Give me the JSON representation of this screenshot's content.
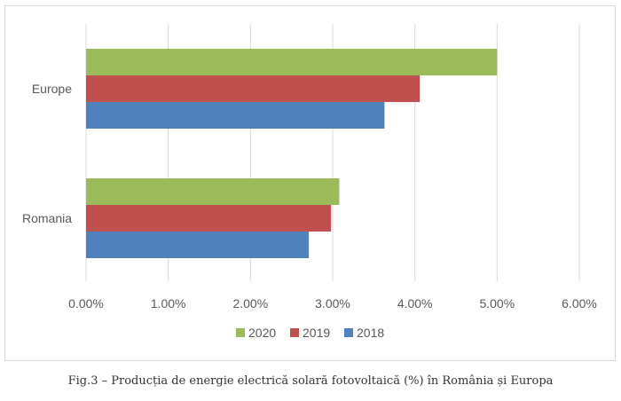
{
  "chart_data": {
    "type": "bar",
    "orientation": "horizontal",
    "title": "",
    "xlabel": "",
    "ylabel": "",
    "categories": [
      "Europe",
      "Romania"
    ],
    "series": [
      {
        "name": "2020",
        "color": "#9bbb59",
        "values": [
          5.0,
          3.08
        ]
      },
      {
        "name": "2019",
        "color": "#c0504d",
        "values": [
          4.06,
          2.98
        ]
      },
      {
        "name": "2018",
        "color": "#4f81bd",
        "values": [
          3.63,
          2.71
        ]
      }
    ],
    "xlim": [
      0,
      6
    ],
    "x_ticks": [
      {
        "value": 0,
        "label": "0.00%"
      },
      {
        "value": 1,
        "label": "1.00%"
      },
      {
        "value": 2,
        "label": "2.00%"
      },
      {
        "value": 3,
        "label": "3.00%"
      },
      {
        "value": 4,
        "label": "4.00%"
      },
      {
        "value": 5,
        "label": "5.00%"
      },
      {
        "value": 6,
        "label": "6.00%"
      }
    ],
    "grid": true,
    "legend_position": "bottom"
  },
  "caption": "Fig.3 – Producția de energie electrică solară fotovoltaică (%) în România și Europa"
}
